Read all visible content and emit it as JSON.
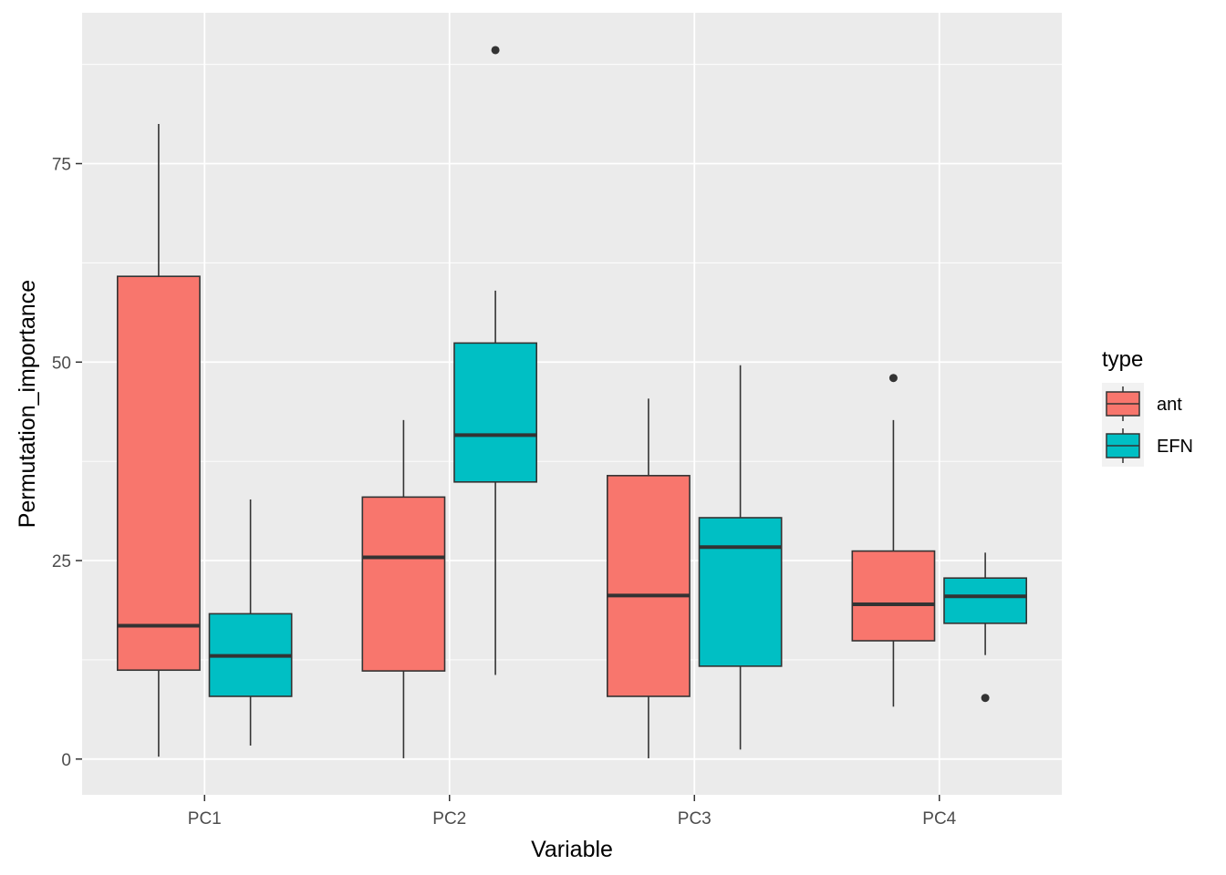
{
  "chart_data": {
    "type": "boxplot",
    "xlabel": "Variable",
    "ylabel": "Permutation_importance",
    "categories": [
      "PC1",
      "PC2",
      "PC3",
      "PC4"
    ],
    "ylim": [
      -4.5,
      94
    ],
    "yticks": [
      0,
      25,
      50,
      75
    ],
    "ytick_labels": [
      "0",
      "25",
      "50",
      "75"
    ],
    "grid": true,
    "legend": {
      "title": "type",
      "position": "right",
      "entries": [
        {
          "label": "ant",
          "color": "#F8766D"
        },
        {
          "label": "EFN",
          "color": "#00BFC4"
        }
      ]
    },
    "series": [
      {
        "name": "ant",
        "color": "#F8766D",
        "boxes": [
          {
            "category": "PC1",
            "min": 0.3,
            "q1": 11.2,
            "median": 16.8,
            "q3": 60.8,
            "max": 80.0,
            "outliers": []
          },
          {
            "category": "PC2",
            "min": 0.1,
            "q1": 11.1,
            "median": 25.4,
            "q3": 33.0,
            "max": 42.7,
            "outliers": []
          },
          {
            "category": "PC3",
            "min": 0.1,
            "q1": 7.9,
            "median": 20.6,
            "q3": 35.7,
            "max": 45.4,
            "outliers": []
          },
          {
            "category": "PC4",
            "min": 6.6,
            "q1": 14.9,
            "median": 19.5,
            "q3": 26.2,
            "max": 42.7,
            "outliers": [
              48.0
            ]
          }
        ]
      },
      {
        "name": "EFN",
        "color": "#00BFC4",
        "boxes": [
          {
            "category": "PC1",
            "min": 1.7,
            "q1": 7.9,
            "median": 13.0,
            "q3": 18.3,
            "max": 32.7,
            "outliers": []
          },
          {
            "category": "PC2",
            "min": 10.6,
            "q1": 34.9,
            "median": 40.8,
            "q3": 52.4,
            "max": 59.0,
            "outliers": [
              89.3
            ]
          },
          {
            "category": "PC3",
            "min": 1.2,
            "q1": 11.7,
            "median": 26.7,
            "q3": 30.4,
            "max": 49.6,
            "outliers": []
          },
          {
            "category": "PC4",
            "min": 13.1,
            "q1": 17.1,
            "median": 20.5,
            "q3": 22.8,
            "max": 26.0,
            "outliers": [
              7.7
            ]
          }
        ]
      }
    ]
  }
}
